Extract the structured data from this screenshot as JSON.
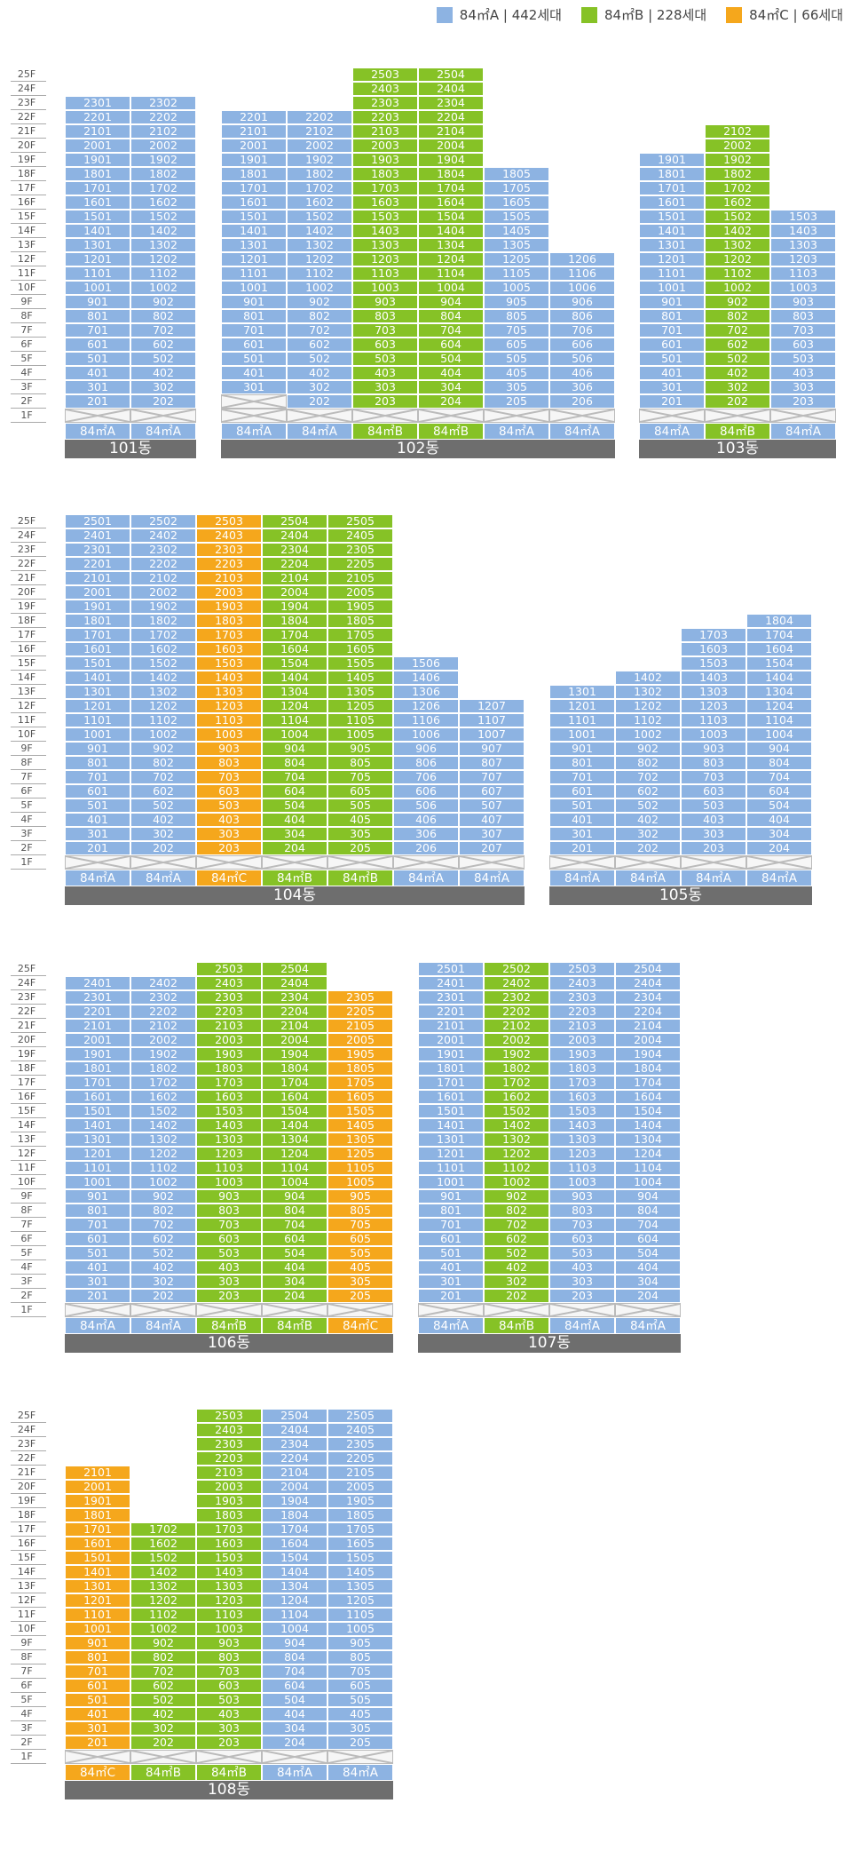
{
  "legend": [
    {
      "label": "84㎡A | 442세대",
      "type": "A",
      "color": "#8db3e2"
    },
    {
      "label": "84㎡B | 228세대",
      "type": "B",
      "color": "#86c226"
    },
    {
      "label": "84㎡C | 66세대",
      "type": "C",
      "color": "#f5a71c"
    }
  ],
  "colors": {
    "A": "#8db3e2",
    "B": "#86c226",
    "C": "#f5a71c",
    "bar": "#6e6e6e"
  },
  "type_labels": {
    "A": "84㎡A",
    "B": "84㎡B",
    "C": "84㎡C"
  },
  "floor_labels": [
    "25F",
    "24F",
    "23F",
    "22F",
    "21F",
    "20F",
    "19F",
    "18F",
    "17F",
    "16F",
    "15F",
    "14F",
    "13F",
    "12F",
    "11F",
    "10F",
    "9F",
    "8F",
    "7F",
    "6F",
    "5F",
    "4F",
    "3F",
    "2F",
    "1F"
  ],
  "buildings": [
    {
      "name": "101동",
      "lines": [
        {
          "line": 1,
          "type": "A",
          "top": 23,
          "bottom": 2
        },
        {
          "line": 2,
          "type": "A",
          "top": 23,
          "bottom": 2
        }
      ]
    },
    {
      "name": "102동",
      "lines": [
        {
          "line": 1,
          "type": "A",
          "top": 22,
          "bottom": 3
        },
        {
          "line": 2,
          "type": "A",
          "top": 22,
          "bottom": 2
        },
        {
          "line": 3,
          "type": "B",
          "top": 25,
          "bottom": 2
        },
        {
          "line": 4,
          "type": "B",
          "top": 25,
          "bottom": 2
        },
        {
          "line": 5,
          "type": "A",
          "top": 18,
          "bottom": 2
        },
        {
          "line": 6,
          "type": "A",
          "top": 12,
          "bottom": 2
        }
      ]
    },
    {
      "name": "103동",
      "lines": [
        {
          "line": 1,
          "type": "A",
          "top": 19,
          "bottom": 2
        },
        {
          "line": 2,
          "type": "B",
          "top": 21,
          "bottom": 2
        },
        {
          "line": 3,
          "type": "A",
          "top": 15,
          "bottom": 2
        }
      ]
    },
    {
      "name": "104동",
      "lines": [
        {
          "line": 1,
          "type": "A",
          "top": 25,
          "bottom": 2
        },
        {
          "line": 2,
          "type": "A",
          "top": 25,
          "bottom": 2
        },
        {
          "line": 3,
          "type": "C",
          "top": 25,
          "bottom": 2
        },
        {
          "line": 4,
          "type": "B",
          "top": 25,
          "bottom": 2
        },
        {
          "line": 5,
          "type": "B",
          "top": 25,
          "bottom": 2
        },
        {
          "line": 6,
          "type": "A",
          "top": 15,
          "bottom": 2
        },
        {
          "line": 7,
          "type": "A",
          "top": 12,
          "bottom": 2
        }
      ]
    },
    {
      "name": "105동",
      "lines": [
        {
          "line": 1,
          "type": "A",
          "top": 13,
          "bottom": 2
        },
        {
          "line": 2,
          "type": "A",
          "top": 14,
          "bottom": 2
        },
        {
          "line": 3,
          "type": "A",
          "top": 17,
          "bottom": 2
        },
        {
          "line": 4,
          "type": "A",
          "top": 18,
          "bottom": 2
        }
      ]
    },
    {
      "name": "106동",
      "lines": [
        {
          "line": 1,
          "type": "A",
          "top": 24,
          "bottom": 2
        },
        {
          "line": 2,
          "type": "A",
          "top": 24,
          "bottom": 2
        },
        {
          "line": 3,
          "type": "B",
          "top": 25,
          "bottom": 2
        },
        {
          "line": 4,
          "type": "B",
          "top": 25,
          "bottom": 2
        },
        {
          "line": 5,
          "type": "C",
          "top": 23,
          "bottom": 2
        }
      ]
    },
    {
      "name": "107동",
      "lines": [
        {
          "line": 1,
          "type": "A",
          "top": 25,
          "bottom": 2
        },
        {
          "line": 2,
          "type": "B",
          "top": 25,
          "bottom": 2
        },
        {
          "line": 3,
          "type": "A",
          "top": 25,
          "bottom": 2
        },
        {
          "line": 4,
          "type": "A",
          "top": 25,
          "bottom": 2
        }
      ]
    },
    {
      "name": "108동",
      "lines": [
        {
          "line": 1,
          "type": "C",
          "top": 21,
          "bottom": 2
        },
        {
          "line": 2,
          "type": "B",
          "top": 17,
          "bottom": 2
        },
        {
          "line": 3,
          "type": "B",
          "top": 25,
          "bottom": 2
        },
        {
          "line": 4,
          "type": "A",
          "top": 25,
          "bottom": 2
        },
        {
          "line": 5,
          "type": "A",
          "top": 25,
          "bottom": 2
        }
      ]
    }
  ]
}
